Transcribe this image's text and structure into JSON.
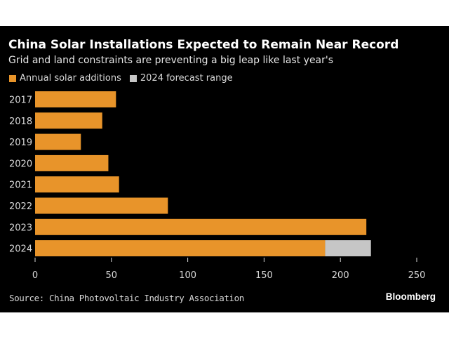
{
  "chart_data": {
    "type": "bar",
    "orientation": "horizontal",
    "stacked": true,
    "title": "China Solar Installations Expected to Remain Near Record",
    "subtitle": "Grid and land constraints are preventing a big leap like last year's",
    "categories": [
      "2017",
      "2018",
      "2019",
      "2020",
      "2021",
      "2022",
      "2023",
      "2024"
    ],
    "series": [
      {
        "name": "Annual solar additions",
        "color": "#e8942a",
        "values": [
          53,
          44,
          30,
          48,
          55,
          87,
          217,
          190
        ]
      },
      {
        "name": "2024 forecast range",
        "color": "#c6c6c6",
        "values": [
          0,
          0,
          0,
          0,
          0,
          0,
          0,
          30
        ]
      }
    ],
    "xlim": [
      0,
      250
    ],
    "xticks": [
      0,
      50,
      100,
      150,
      200,
      250
    ],
    "xlabel": "",
    "ylabel": "",
    "legend_position": "top-left",
    "grid": false
  },
  "legend": {
    "items": [
      {
        "label": "Annual solar additions",
        "color": "#e8942a"
      },
      {
        "label": "2024 forecast range",
        "color": "#c6c6c6"
      }
    ]
  },
  "footer": {
    "source": "Source: China Photovoltaic Industry Association",
    "brand": "Bloomberg"
  }
}
